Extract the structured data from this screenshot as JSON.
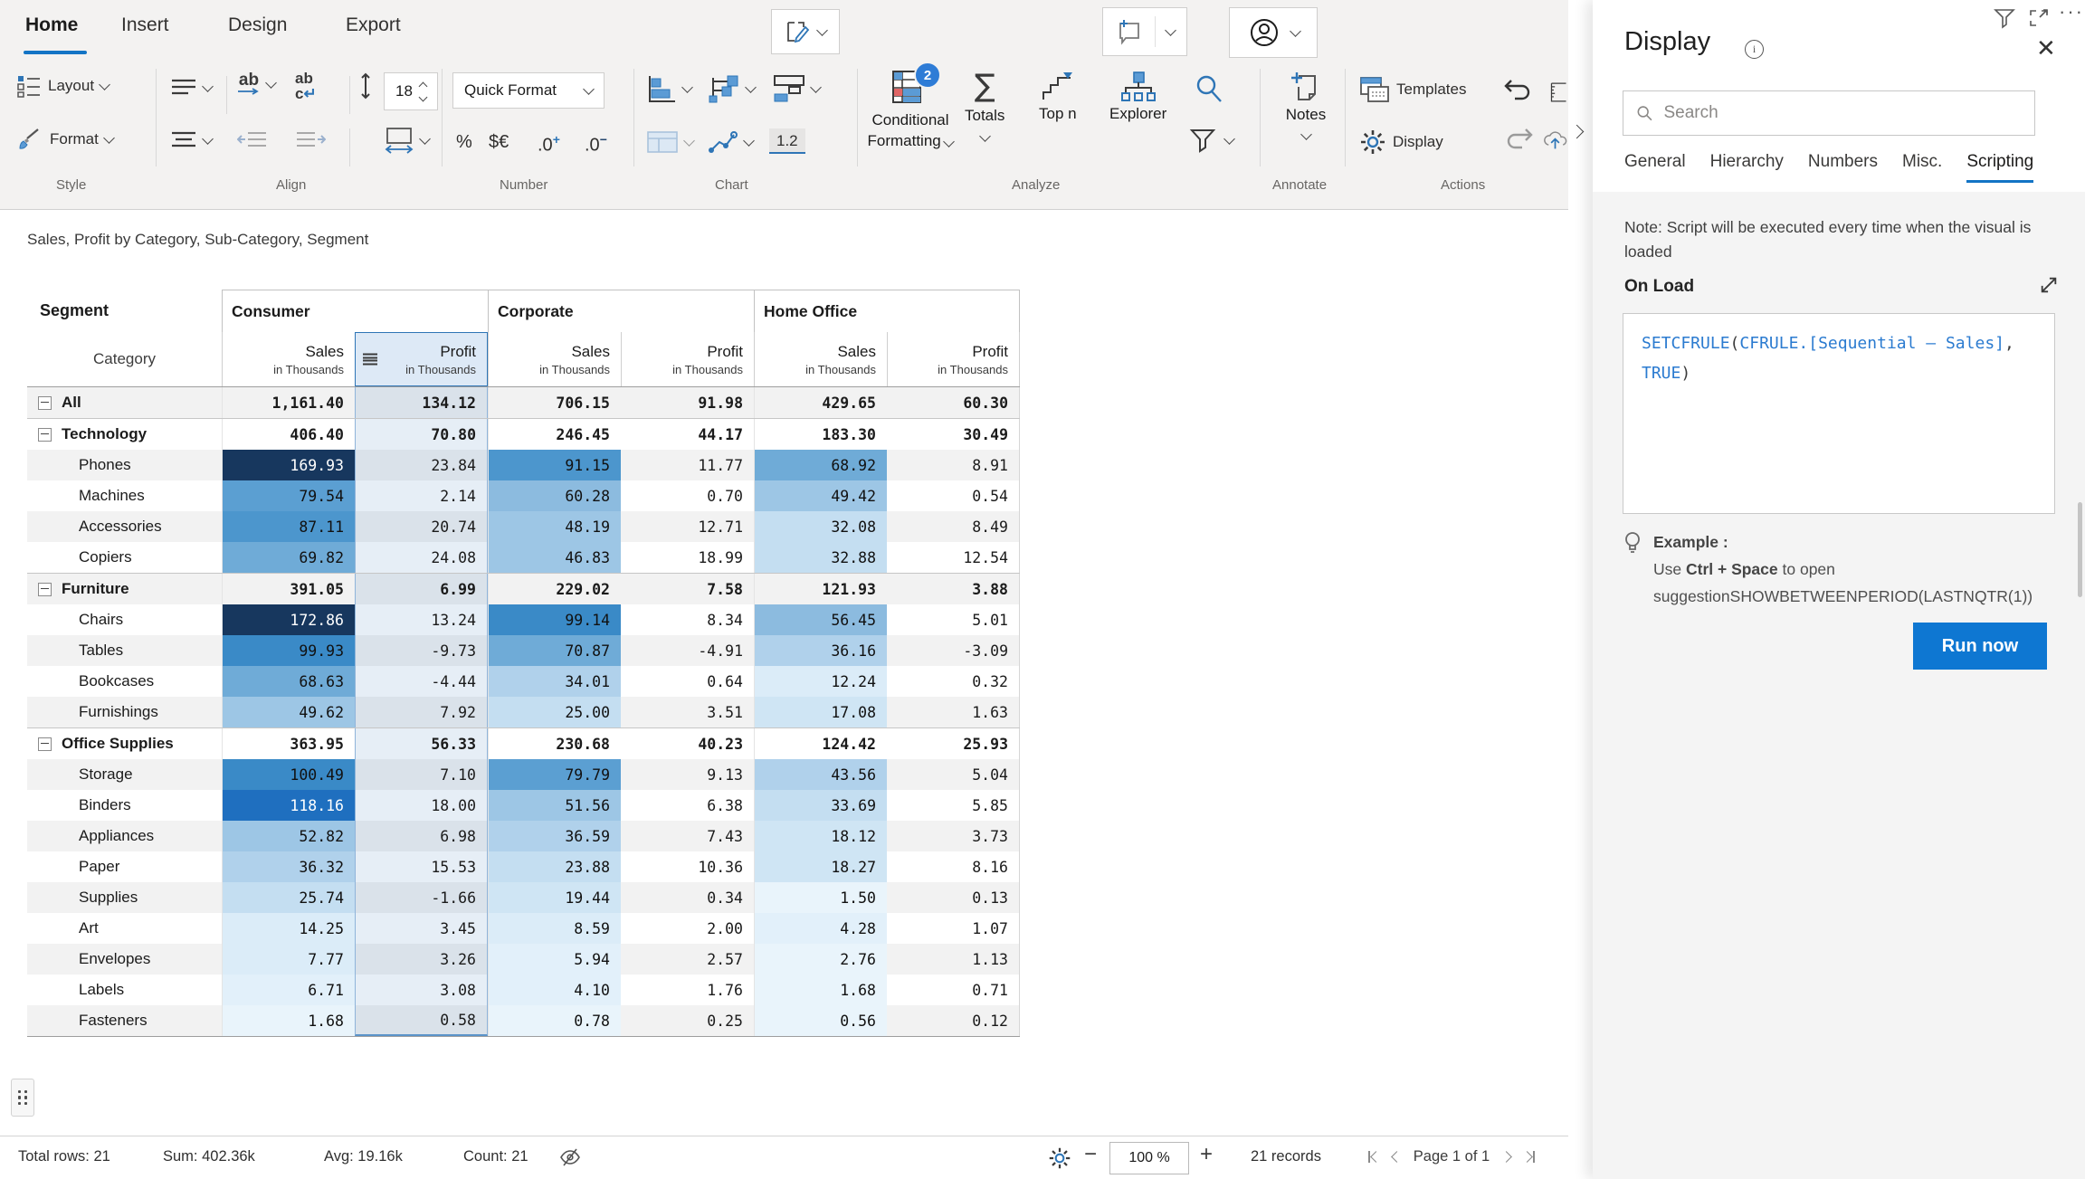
{
  "ribbon": {
    "tabs": [
      "Home",
      "Insert",
      "Design",
      "Export"
    ],
    "style": {
      "label": "Style",
      "layout": "Layout",
      "format": "Format"
    },
    "align": {
      "label": "Align",
      "font_size": "18"
    },
    "number": {
      "label": "Number",
      "quick_format": "Quick Format",
      "percent": "%",
      "currency": "$€",
      "dec_base": ".0",
      "inc_sign": "+",
      "dec_sign": "−"
    },
    "chart": {
      "label": "Chart",
      "one_two": "1.2"
    },
    "analyze": {
      "label": "Analyze",
      "conditional_line1": "Conditional",
      "conditional_line2": "Formatting",
      "badge": "2",
      "totals": "Totals",
      "top_n": "Top n",
      "explorer": "Explorer"
    },
    "annotate": {
      "label": "Annotate",
      "notes": "Notes"
    },
    "actions": {
      "label": "Actions",
      "templates": "Templates",
      "display": "Display"
    }
  },
  "table": {
    "title": "Sales, Profit by Category, Sub-Category, Segment",
    "segment_header": "Segment",
    "category_header": "Category",
    "groups": [
      "Consumer",
      "Corporate",
      "Home Office"
    ],
    "measures": [
      "Sales",
      "Profit"
    ],
    "unit": "in Thousands",
    "selected_column_index": 1,
    "rows": [
      {
        "label": "All",
        "type": "grand",
        "cells": [
          "1,161.40",
          "134.12",
          "706.15",
          "91.98",
          "429.65",
          "60.30"
        ]
      },
      {
        "label": "Technology",
        "type": "group",
        "cells": [
          "406.40",
          "70.80",
          "246.45",
          "44.17",
          "183.30",
          "30.49"
        ]
      },
      {
        "label": "Phones",
        "type": "item",
        "cells": [
          "169.93",
          "23.84",
          "91.15",
          "11.77",
          "68.92",
          "8.91"
        ]
      },
      {
        "label": "Machines",
        "type": "item",
        "cells": [
          "79.54",
          "2.14",
          "60.28",
          "0.70",
          "49.42",
          "0.54"
        ]
      },
      {
        "label": "Accessories",
        "type": "item",
        "cells": [
          "87.11",
          "20.74",
          "48.19",
          "12.71",
          "32.08",
          "8.49"
        ]
      },
      {
        "label": "Copiers",
        "type": "item",
        "cells": [
          "69.82",
          "24.08",
          "46.83",
          "18.99",
          "32.88",
          "12.54"
        ]
      },
      {
        "label": "Furniture",
        "type": "group",
        "sep": true,
        "cells": [
          "391.05",
          "6.99",
          "229.02",
          "7.58",
          "121.93",
          "3.88"
        ]
      },
      {
        "label": "Chairs",
        "type": "item",
        "cells": [
          "172.86",
          "13.24",
          "99.14",
          "8.34",
          "56.45",
          "5.01"
        ]
      },
      {
        "label": "Tables",
        "type": "item",
        "cells": [
          "99.93",
          "-9.73",
          "70.87",
          "-4.91",
          "36.16",
          "-3.09"
        ]
      },
      {
        "label": "Bookcases",
        "type": "item",
        "cells": [
          "68.63",
          "-4.44",
          "34.01",
          "0.64",
          "12.24",
          "0.32"
        ]
      },
      {
        "label": "Furnishings",
        "type": "item",
        "cells": [
          "49.62",
          "7.92",
          "25.00",
          "3.51",
          "17.08",
          "1.63"
        ]
      },
      {
        "label": "Office Supplies",
        "type": "group",
        "sep": true,
        "cells": [
          "363.95",
          "56.33",
          "230.68",
          "40.23",
          "124.42",
          "25.93"
        ]
      },
      {
        "label": "Storage",
        "type": "item",
        "cells": [
          "100.49",
          "7.10",
          "79.79",
          "9.13",
          "43.56",
          "5.04"
        ]
      },
      {
        "label": "Binders",
        "type": "item",
        "cells": [
          "118.16",
          "18.00",
          "51.56",
          "6.38",
          "33.69",
          "5.85"
        ]
      },
      {
        "label": "Appliances",
        "type": "item",
        "cells": [
          "52.82",
          "6.98",
          "36.59",
          "7.43",
          "18.12",
          "3.73"
        ]
      },
      {
        "label": "Paper",
        "type": "item",
        "cells": [
          "36.32",
          "15.53",
          "23.88",
          "10.36",
          "18.27",
          "8.16"
        ]
      },
      {
        "label": "Supplies",
        "type": "item",
        "cells": [
          "25.74",
          "-1.66",
          "19.44",
          "0.34",
          "1.50",
          "0.13"
        ]
      },
      {
        "label": "Art",
        "type": "item",
        "cells": [
          "14.25",
          "3.45",
          "8.59",
          "2.00",
          "4.28",
          "1.07"
        ]
      },
      {
        "label": "Envelopes",
        "type": "item",
        "cells": [
          "7.77",
          "3.26",
          "5.94",
          "2.57",
          "2.76",
          "1.13"
        ]
      },
      {
        "label": "Labels",
        "type": "item",
        "cells": [
          "6.71",
          "3.08",
          "4.10",
          "1.76",
          "1.68",
          "0.71"
        ]
      },
      {
        "label": "Fasteners",
        "type": "item",
        "cells": [
          "1.68",
          "0.58",
          "0.78",
          "0.25",
          "0.56",
          "0.12"
        ]
      }
    ],
    "cf_scale": [
      {
        "min": 160,
        "bg": "#17375e",
        "fg": "#ffffff"
      },
      {
        "min": 110,
        "bg": "#1f6fbf",
        "fg": "#ffffff"
      },
      {
        "min": 95,
        "bg": "#3a8ac7",
        "fg": "#111111"
      },
      {
        "min": 85,
        "bg": "#4c96cd",
        "fg": "#111111"
      },
      {
        "min": 75,
        "bg": "#5b9fd2",
        "fg": "#111111"
      },
      {
        "min": 65,
        "bg": "#6fabd7",
        "fg": "#111111"
      },
      {
        "min": 55,
        "bg": "#8cbbdf",
        "fg": "#111111"
      },
      {
        "min": 45,
        "bg": "#9dc6e5",
        "fg": "#111111"
      },
      {
        "min": 34,
        "bg": "#b0d1eb",
        "fg": "#111111"
      },
      {
        "min": 22,
        "bg": "#c4def1",
        "fg": "#111111"
      },
      {
        "min": 15,
        "bg": "#cfe5f4",
        "fg": "#111111"
      },
      {
        "min": 7,
        "bg": "#dbecf8",
        "fg": "#111111"
      },
      {
        "min": 3,
        "bg": "#e2f0fa",
        "fg": "#111111"
      },
      {
        "min": 0,
        "bg": "#e9f4fb",
        "fg": "#111111"
      }
    ]
  },
  "status_bar": {
    "total_rows": "Total rows: 21",
    "sum": "Sum: 402.36k",
    "avg": "Avg: 19.16k",
    "count": "Count: 21",
    "zoom_value": "100 %",
    "zoom_minus": "−",
    "zoom_plus": "+",
    "records": "21 records",
    "page": "Page 1 of 1"
  },
  "panel": {
    "title": "Display",
    "search_placeholder": "Search",
    "tabs": [
      "General",
      "Hierarchy",
      "Numbers",
      "Misc.",
      "Scripting"
    ],
    "active_tab_index": 4,
    "note": "Note: Script will be executed every time when the visual is loaded",
    "on_load": "On Load",
    "code_lines": [
      [
        {
          "t": "SETCFRULE",
          "c": "kw"
        },
        {
          "t": "(",
          "c": "p"
        },
        {
          "t": "CFRULE.",
          "c": "kw"
        },
        {
          "t": "[Sequential – Sales]",
          "c": "kw"
        },
        {
          "t": ",",
          "c": "p"
        }
      ],
      [
        {
          "t": "TRUE",
          "c": "kw"
        },
        {
          "t": ")",
          "c": "p"
        }
      ]
    ],
    "example": {
      "heading": "Example :",
      "use_prefix": "Use ",
      "shortcut": "Ctrl + Space",
      "use_suffix": " to open",
      "suggestion_line": "suggestionSHOWBETWEENPERIOD(LASTNQTR(1))"
    },
    "run_button": "Run now"
  },
  "colors": {
    "accent": "#1374c5",
    "run_button": "#0e77d2",
    "code_keyword": "#2b7bd0",
    "selected_column_border": "#2e75b6",
    "cell_dark": "#17375e"
  }
}
